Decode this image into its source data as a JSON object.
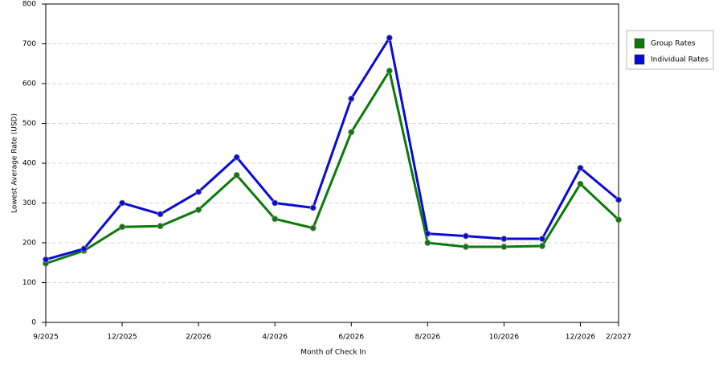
{
  "chart_data": {
    "type": "line",
    "x_label": "Month of Check In",
    "y_label": "Lowest Average Rate (USD)",
    "categories": [
      "9/2025",
      null,
      "12/2025",
      null,
      "2/2026",
      null,
      "4/2026",
      null,
      "6/2026",
      null,
      "8/2026",
      null,
      "10/2026",
      null,
      "12/2026",
      "2/2027"
    ],
    "series": [
      {
        "name": "Group Rates",
        "color": "#0a7a0a",
        "values": [
          148,
          180,
          240,
          242,
          283,
          370,
          260,
          237,
          478,
          632,
          200,
          190,
          190,
          192,
          348,
          258
        ]
      },
      {
        "name": "Individual Rates",
        "color": "#0a0ad8",
        "values": [
          158,
          185,
          300,
          272,
          328,
          415,
          300,
          288,
          562,
          715,
          223,
          217,
          210,
          210,
          388,
          308
        ]
      }
    ],
    "ylim": [
      0,
      800
    ],
    "yticks": [
      0,
      100,
      200,
      300,
      400,
      500,
      600,
      700,
      800
    ],
    "grid": true
  }
}
